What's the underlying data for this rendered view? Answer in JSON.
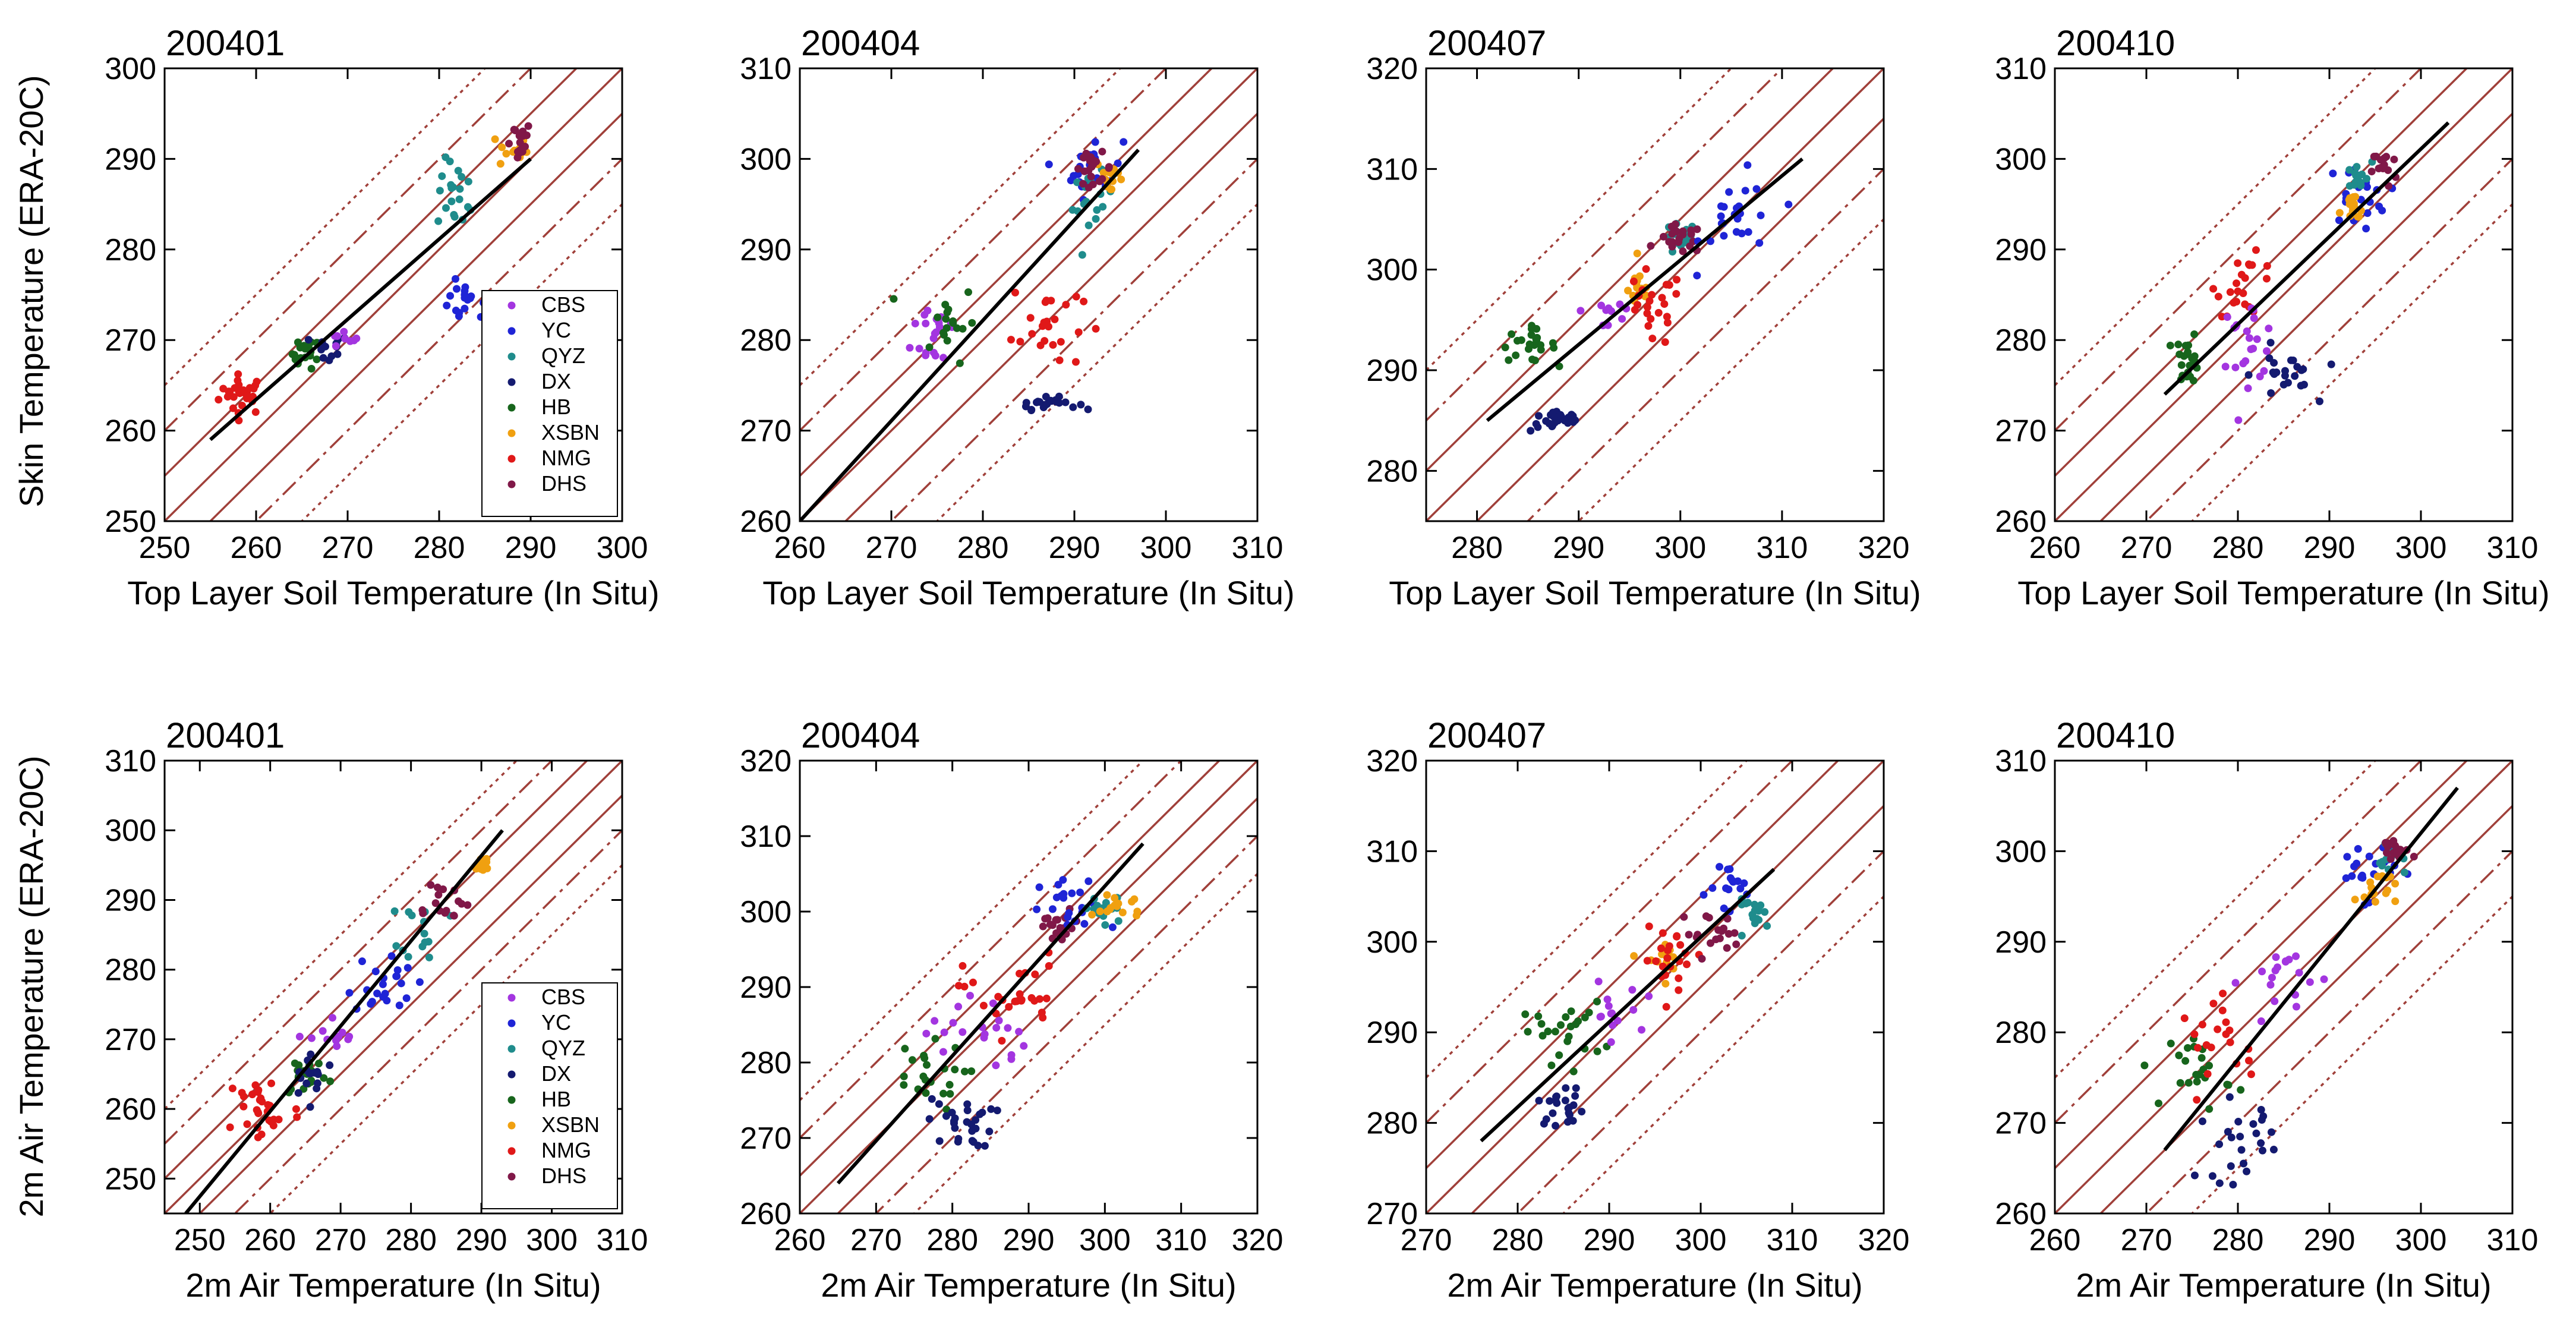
{
  "figure": {
    "y_label_row1": "Skin Temperature (ERA-20C)",
    "y_label_row2": "2m Air Temperature (ERA-20C)"
  },
  "legend": {
    "entries": [
      {
        "code": "CBS",
        "color": "#a335e0"
      },
      {
        "code": "YC",
        "color": "#1f24d6"
      },
      {
        "code": "QYZ",
        "color": "#1f8c8c"
      },
      {
        "code": "DX",
        "color": "#141a70"
      },
      {
        "code": "HB",
        "color": "#17651c"
      },
      {
        "code": "XSBN",
        "color": "#f0a010"
      },
      {
        "code": "NMG",
        "color": "#e01818"
      },
      {
        "code": "DHS",
        "color": "#801848"
      }
    ]
  },
  "colors": {
    "reference_lines": "#a0403a",
    "fit_line": "#000000",
    "axes": "#000000"
  },
  "chart_data": [
    {
      "type": "scatter",
      "title": "200401",
      "xlabel": "Top Layer Soil Temperature (In Situ)",
      "ylabel": "Skin Temperature (ERA-20C)",
      "xlim": [
        250,
        300
      ],
      "ylim": [
        250,
        300
      ],
      "xticks": [
        250,
        260,
        270,
        280,
        290,
        300
      ],
      "yticks": [
        250,
        260,
        270,
        280,
        290,
        300
      ],
      "fit": [
        [
          255,
          259
        ],
        [
          290,
          290
        ]
      ],
      "legend": true,
      "clusters": [
        {
          "station": "NMG",
          "center": [
            258.5,
            264
          ],
          "spread": [
            2.3,
            2
          ],
          "n": 28
        },
        {
          "station": "HB",
          "center": [
            265.5,
            268.5
          ],
          "spread": [
            1.4,
            1.5
          ],
          "n": 22
        },
        {
          "station": "DX",
          "center": [
            268,
            269
          ],
          "spread": [
            2,
            1.5
          ],
          "n": 12
        },
        {
          "station": "CBS",
          "center": [
            269.5,
            270
          ],
          "spread": [
            1.5,
            1
          ],
          "n": 8
        },
        {
          "station": "YC",
          "center": [
            283,
            274
          ],
          "spread": [
            3.5,
            2
          ],
          "n": 22
        },
        {
          "station": "QYZ",
          "center": [
            282,
            286
          ],
          "spread": [
            2,
            3.5
          ],
          "n": 20
        },
        {
          "station": "XSBN",
          "center": [
            288,
            291
          ],
          "spread": [
            1.5,
            2
          ],
          "n": 14
        },
        {
          "station": "DHS",
          "center": [
            288.5,
            292
          ],
          "spread": [
            1.5,
            2
          ],
          "n": 16
        }
      ]
    },
    {
      "type": "scatter",
      "title": "200404",
      "xlabel": "Top Layer Soil Temperature (In Situ)",
      "ylabel": "",
      "xlim": [
        260,
        310
      ],
      "ylim": [
        260,
        310
      ],
      "xticks": [
        260,
        270,
        280,
        290,
        300,
        310
      ],
      "yticks": [
        260,
        270,
        280,
        290,
        300,
        310
      ],
      "fit": [
        [
          260,
          260
        ],
        [
          297,
          301
        ]
      ],
      "legend": false,
      "clusters": [
        {
          "station": "CBS",
          "center": [
            275,
            281
          ],
          "spread": [
            2.5,
            4
          ],
          "n": 20
        },
        {
          "station": "HB",
          "center": [
            276,
            282
          ],
          "spread": [
            3,
            4
          ],
          "n": 18
        },
        {
          "station": "DX",
          "center": [
            287,
            273
          ],
          "spread": [
            3,
            0.6
          ],
          "n": 22
        },
        {
          "station": "NMG",
          "center": [
            287,
            282
          ],
          "spread": [
            3.5,
            5
          ],
          "n": 24
        },
        {
          "station": "YC",
          "center": [
            292,
            299
          ],
          "spread": [
            3,
            3
          ],
          "n": 24
        },
        {
          "station": "QYZ",
          "center": [
            292,
            295
          ],
          "spread": [
            2,
            3
          ],
          "n": 16
        },
        {
          "station": "XSBN",
          "center": [
            294,
            298
          ],
          "spread": [
            1.5,
            2
          ],
          "n": 14
        },
        {
          "station": "DHS",
          "center": [
            292,
            299
          ],
          "spread": [
            2,
            1.5
          ],
          "n": 20
        }
      ]
    },
    {
      "type": "scatter",
      "title": "200407",
      "xlabel": "Top Layer Soil Temperature (In Situ)",
      "ylabel": "",
      "xlim": [
        275,
        320
      ],
      "ylim": [
        275,
        320
      ],
      "xticks": [
        280,
        290,
        300,
        310,
        320
      ],
      "yticks": [
        280,
        290,
        300,
        310,
        320
      ],
      "fit": [
        [
          281,
          285
        ],
        [
          312,
          311
        ]
      ],
      "legend": false,
      "clusters": [
        {
          "station": "HB",
          "center": [
            285,
            292.5
          ],
          "spread": [
            2.5,
            1.5
          ],
          "n": 24
        },
        {
          "station": "DX",
          "center": [
            288,
            285
          ],
          "spread": [
            2.5,
            1
          ],
          "n": 24
        },
        {
          "station": "CBS",
          "center": [
            293,
            296
          ],
          "spread": [
            2.5,
            2.5
          ],
          "n": 10
        },
        {
          "station": "XSBN",
          "center": [
            296,
            298
          ],
          "spread": [
            1,
            2
          ],
          "n": 16
        },
        {
          "station": "NMG",
          "center": [
            297,
            296
          ],
          "spread": [
            3,
            3.5
          ],
          "n": 24
        },
        {
          "station": "QYZ",
          "center": [
            300,
            303
          ],
          "spread": [
            1.5,
            1.5
          ],
          "n": 16
        },
        {
          "station": "DHS",
          "center": [
            300,
            303
          ],
          "spread": [
            2,
            1.3
          ],
          "n": 22
        },
        {
          "station": "YC",
          "center": [
            306,
            305
          ],
          "spread": [
            3.5,
            4
          ],
          "n": 24
        }
      ]
    },
    {
      "type": "scatter",
      "title": "200410",
      "xlabel": "Top Layer Soil Temperature (In Situ)",
      "ylabel": "",
      "xlim": [
        260,
        310
      ],
      "ylim": [
        260,
        310
      ],
      "xticks": [
        260,
        270,
        280,
        290,
        300,
        310
      ],
      "yticks": [
        260,
        270,
        280,
        290,
        300,
        310
      ],
      "fit": [
        [
          272,
          274
        ],
        [
          303,
          304
        ]
      ],
      "legend": false,
      "clusters": [
        {
          "station": "HB",
          "center": [
            274.5,
            278
          ],
          "spread": [
            1.2,
            2.5
          ],
          "n": 22
        },
        {
          "station": "NMG",
          "center": [
            281,
            286
          ],
          "spread": [
            3,
            3
          ],
          "n": 22
        },
        {
          "station": "CBS",
          "center": [
            281,
            280
          ],
          "spread": [
            3,
            4
          ],
          "n": 22
        },
        {
          "station": "DX",
          "center": [
            285,
            276
          ],
          "spread": [
            3,
            3
          ],
          "n": 22
        },
        {
          "station": "YC",
          "center": [
            293,
            296
          ],
          "spread": [
            3,
            3
          ],
          "n": 20
        },
        {
          "station": "QYZ",
          "center": [
            293,
            298
          ],
          "spread": [
            1.5,
            1.5
          ],
          "n": 14
        },
        {
          "station": "XSBN",
          "center": [
            292.5,
            294
          ],
          "spread": [
            1.2,
            2
          ],
          "n": 14
        },
        {
          "station": "DHS",
          "center": [
            296,
            299
          ],
          "spread": [
            1.2,
            2
          ],
          "n": 14
        }
      ]
    },
    {
      "type": "scatter",
      "title": "200401",
      "xlabel": "2m Air Temperature (In Situ)",
      "ylabel": "2m Air Temperature (ERA-20C)",
      "xlim": [
        245,
        310
      ],
      "ylim": [
        245,
        310
      ],
      "xticks": [
        250,
        260,
        270,
        280,
        290,
        300,
        310
      ],
      "yticks": [
        250,
        260,
        270,
        280,
        290,
        300,
        310
      ],
      "fit": [
        [
          248,
          245
        ],
        [
          293,
          300
        ]
      ],
      "legend": true,
      "clusters": [
        {
          "station": "NMG",
          "center": [
            259,
            260
          ],
          "spread": [
            5,
            5
          ],
          "n": 30
        },
        {
          "station": "HB",
          "center": [
            265,
            265
          ],
          "spread": [
            3,
            3
          ],
          "n": 18
        },
        {
          "station": "DX",
          "center": [
            266,
            265
          ],
          "spread": [
            3,
            3
          ],
          "n": 16
        },
        {
          "station": "CBS",
          "center": [
            269,
            270
          ],
          "spread": [
            3,
            3
          ],
          "n": 12
        },
        {
          "station": "YC",
          "center": [
            276,
            278
          ],
          "spread": [
            4,
            4
          ],
          "n": 22
        },
        {
          "station": "QYZ",
          "center": [
            282,
            286
          ],
          "spread": [
            3,
            4
          ],
          "n": 14
        },
        {
          "station": "DHS",
          "center": [
            284,
            290
          ],
          "spread": [
            4,
            3
          ],
          "n": 16
        },
        {
          "station": "XSBN",
          "center": [
            290,
            295
          ],
          "spread": [
            1.3,
            1.5
          ],
          "n": 14
        }
      ]
    },
    {
      "type": "scatter",
      "title": "200404",
      "xlabel": "2m Air Temperature (In Situ)",
      "ylabel": "",
      "xlim": [
        260,
        320
      ],
      "ylim": [
        260,
        320
      ],
      "xticks": [
        260,
        270,
        280,
        290,
        300,
        310,
        320
      ],
      "yticks": [
        260,
        270,
        280,
        290,
        300,
        310,
        320
      ],
      "fit": [
        [
          265,
          264
        ],
        [
          305,
          309
        ]
      ],
      "legend": false,
      "clusters": [
        {
          "station": "HB",
          "center": [
            276,
            278
          ],
          "spread": [
            5,
            4
          ],
          "n": 22
        },
        {
          "station": "DX",
          "center": [
            281,
            272
          ],
          "spread": [
            4,
            3
          ],
          "n": 28
        },
        {
          "station": "CBS",
          "center": [
            283,
            284
          ],
          "spread": [
            6,
            5
          ],
          "n": 20
        },
        {
          "station": "NMG",
          "center": [
            288,
            289
          ],
          "spread": [
            6,
            5
          ],
          "n": 26
        },
        {
          "station": "DHS",
          "center": [
            294,
            298
          ],
          "spread": [
            3,
            2
          ],
          "n": 18
        },
        {
          "station": "YC",
          "center": [
            296,
            300
          ],
          "spread": [
            4,
            4
          ],
          "n": 22
        },
        {
          "station": "QYZ",
          "center": [
            300,
            300
          ],
          "spread": [
            3,
            2
          ],
          "n": 16
        },
        {
          "station": "XSBN",
          "center": [
            302,
            301
          ],
          "spread": [
            3,
            2
          ],
          "n": 16
        }
      ]
    },
    {
      "type": "scatter",
      "title": "200407",
      "xlabel": "2m Air Temperature (In Situ)",
      "ylabel": "",
      "xlim": [
        270,
        320
      ],
      "ylim": [
        270,
        320
      ],
      "xticks": [
        270,
        280,
        290,
        300,
        310,
        320
      ],
      "yticks": [
        270,
        280,
        290,
        300,
        310,
        320
      ],
      "fit": [
        [
          276,
          278
        ],
        [
          308,
          308
        ]
      ],
      "legend": false,
      "clusters": [
        {
          "station": "HB",
          "center": [
            285,
            290
          ],
          "spread": [
            4,
            3
          ],
          "n": 24
        },
        {
          "station": "DX",
          "center": [
            285,
            282
          ],
          "spread": [
            2.5,
            2
          ],
          "n": 22
        },
        {
          "station": "CBS",
          "center": [
            290,
            292
          ],
          "spread": [
            3,
            3
          ],
          "n": 14
        },
        {
          "station": "XSBN",
          "center": [
            296,
            298
          ],
          "spread": [
            2,
            2
          ],
          "n": 16
        },
        {
          "station": "NMG",
          "center": [
            297,
            298
          ],
          "spread": [
            3,
            3
          ],
          "n": 22
        },
        {
          "station": "DHS",
          "center": [
            301,
            301
          ],
          "spread": [
            3,
            2
          ],
          "n": 18
        },
        {
          "station": "YC",
          "center": [
            304,
            306
          ],
          "spread": [
            3,
            3
          ],
          "n": 16
        },
        {
          "station": "QYZ",
          "center": [
            306,
            303
          ],
          "spread": [
            2,
            1.5
          ],
          "n": 16
        }
      ]
    },
    {
      "type": "scatter",
      "title": "200410",
      "xlabel": "2m Air Temperature (In Situ)",
      "ylabel": "",
      "xlim": [
        260,
        310
      ],
      "ylim": [
        260,
        310
      ],
      "xticks": [
        260,
        270,
        280,
        290,
        300,
        310
      ],
      "yticks": [
        260,
        270,
        280,
        290,
        300,
        310
      ],
      "fit": [
        [
          272,
          267
        ],
        [
          304,
          307
        ]
      ],
      "legend": false,
      "clusters": [
        {
          "station": "HB",
          "center": [
            276,
            276
          ],
          "spread": [
            3,
            4
          ],
          "n": 22
        },
        {
          "station": "DX",
          "center": [
            280,
            268
          ],
          "spread": [
            4,
            4
          ],
          "n": 24
        },
        {
          "station": "NMG",
          "center": [
            279,
            279
          ],
          "spread": [
            5,
            4
          ],
          "n": 20
        },
        {
          "station": "CBS",
          "center": [
            285,
            286
          ],
          "spread": [
            4,
            4
          ],
          "n": 18
        },
        {
          "station": "YC",
          "center": [
            294,
            298
          ],
          "spread": [
            3,
            3
          ],
          "n": 22
        },
        {
          "station": "XSBN",
          "center": [
            295,
            296
          ],
          "spread": [
            2,
            2
          ],
          "n": 18
        },
        {
          "station": "QYZ",
          "center": [
            297,
            299
          ],
          "spread": [
            1.5,
            1.5
          ],
          "n": 14
        },
        {
          "station": "DHS",
          "center": [
            297,
            300
          ],
          "spread": [
            1.5,
            1.5
          ],
          "n": 16
        }
      ]
    }
  ]
}
